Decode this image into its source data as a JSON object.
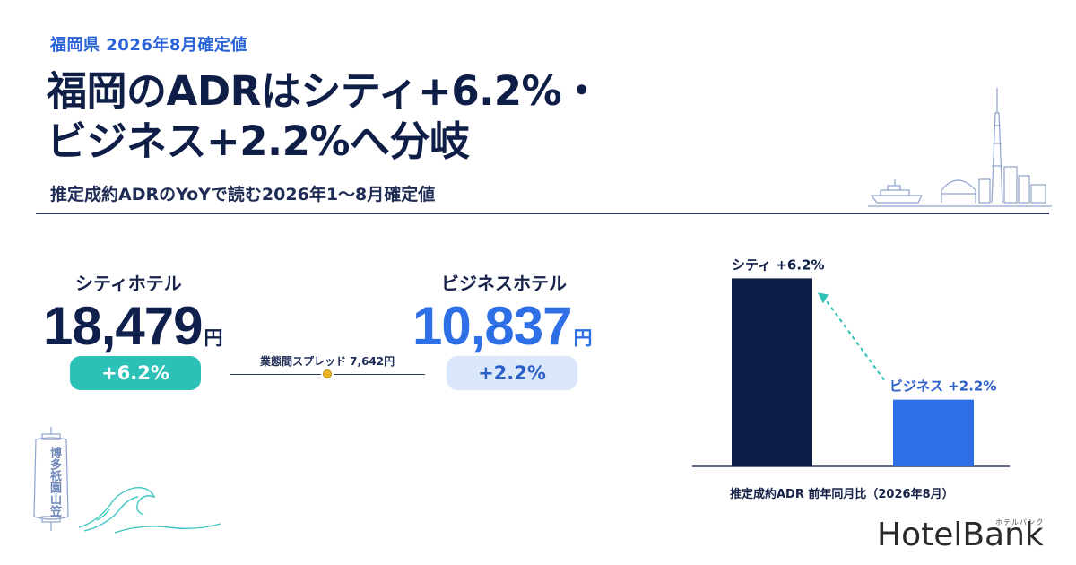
{
  "header": {
    "kicker": "福岡県 2026年8月確定値",
    "headline_line1": "福岡のADRはシティ+6.2%・",
    "headline_line2": "ビジネス+2.2%へ分岐",
    "subhead": "推定成約ADRのYoYで読む2026年1〜8月確定値"
  },
  "kpis": {
    "city": {
      "label": "シティホテル",
      "value": "18,479",
      "unit": "円",
      "change": "+6.2%"
    },
    "business": {
      "label": "ビジネスホテル",
      "value": "10,837",
      "unit": "円",
      "change": "+2.2%"
    },
    "spread_label": "業態間スプレッド 7,642円"
  },
  "decor": {
    "lantern_text": "博多祇園山笠"
  },
  "chart_data": {
    "type": "bar",
    "categories": [
      "シティ",
      "ビジネス"
    ],
    "values": [
      6.2,
      2.2
    ],
    "bar_labels": [
      "シティ +6.2%",
      "ビジネス +2.2%"
    ],
    "caption": "推定成約ADR 前年同月比（2026年8月）",
    "colors": [
      "#0f1e47",
      "#2f6fe6"
    ],
    "ylim": [
      0,
      7.1
    ],
    "grid": false
  },
  "brand": {
    "logo": "HotelBank",
    "logo_sub": "ホテルバンク"
  }
}
